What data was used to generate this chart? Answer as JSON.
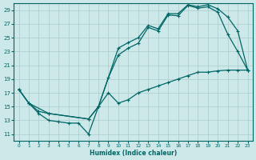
{
  "xlabel": "Humidex (Indice chaleur)",
  "bg_color": "#cce8e8",
  "grid_color": "#aacccc",
  "line_color": "#006666",
  "xlim": [
    -0.5,
    23.5
  ],
  "ylim": [
    10.0,
    30.0
  ],
  "xticks": [
    0,
    1,
    2,
    3,
    4,
    5,
    6,
    7,
    8,
    9,
    10,
    11,
    12,
    13,
    14,
    15,
    16,
    17,
    18,
    19,
    20,
    21,
    22,
    23
  ],
  "yticks": [
    11,
    13,
    15,
    17,
    19,
    21,
    23,
    25,
    27,
    29
  ],
  "line1_x": [
    0,
    1,
    2,
    3,
    4,
    5,
    6,
    7,
    8,
    9,
    10,
    11,
    12,
    13,
    14,
    15,
    16,
    17,
    18,
    19,
    20,
    21,
    22,
    23
  ],
  "line1_y": [
    17.5,
    15.5,
    14.0,
    13.0,
    12.8,
    12.6,
    12.6,
    11.0,
    15.0,
    19.2,
    22.5,
    23.5,
    24.2,
    26.5,
    26.0,
    28.3,
    28.2,
    29.7,
    29.3,
    29.5,
    28.7,
    25.5,
    23.0,
    20.3
  ],
  "line2_x": [
    0,
    1,
    2,
    3,
    7,
    8,
    10,
    11,
    12,
    13,
    14,
    15,
    16,
    17,
    18,
    19,
    20,
    21,
    22,
    23
  ],
  "line2_y": [
    17.5,
    15.5,
    14.3,
    14.0,
    13.2,
    15.0,
    23.5,
    24.3,
    25.0,
    26.8,
    26.3,
    28.5,
    28.5,
    29.8,
    29.5,
    29.8,
    29.2,
    28.0,
    26.0,
    20.3
  ],
  "line3_x": [
    0,
    1,
    3,
    7,
    8,
    9,
    10,
    11,
    12,
    13,
    14,
    15,
    16,
    17,
    18,
    19,
    20,
    21,
    22,
    23
  ],
  "line3_y": [
    17.5,
    15.5,
    14.0,
    13.2,
    15.0,
    17.0,
    15.5,
    16.0,
    17.0,
    17.5,
    18.0,
    18.5,
    19.0,
    19.5,
    20.0,
    20.0,
    20.2,
    20.3,
    20.3,
    20.3
  ]
}
